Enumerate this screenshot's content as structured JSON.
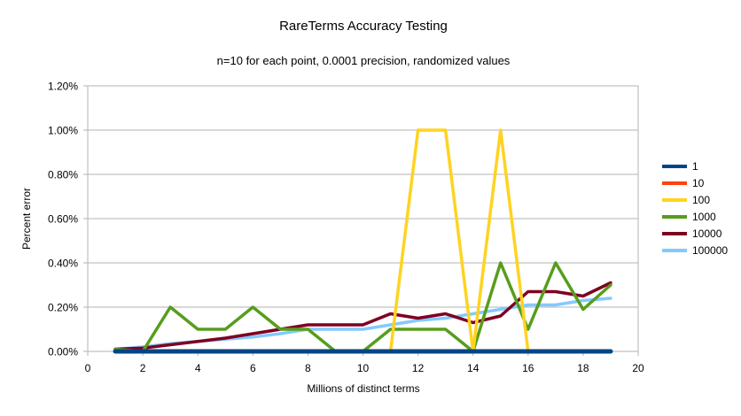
{
  "page": {
    "background": "#ffffff"
  },
  "chart_data": {
    "type": "line",
    "title": "RareTerms Accuracy Testing",
    "subtitle": "n=10 for each point, 0.0001 precision, randomized values",
    "xlabel": "Millions of distinct terms",
    "ylabel": "Percent error",
    "xlim": [
      0,
      20
    ],
    "ylim": [
      0,
      1.2
    ],
    "y_unit": "percent",
    "xticks": [
      0,
      2,
      4,
      6,
      8,
      10,
      12,
      14,
      16,
      18,
      20
    ],
    "yticks": [
      0,
      0.2,
      0.4,
      0.6,
      0.8,
      1.0,
      1.2
    ],
    "ytick_labels": [
      "0.00%",
      "0.20%",
      "0.40%",
      "0.60%",
      "0.80%",
      "1.00%",
      "1.20%"
    ],
    "grid": "horizontal",
    "grid_color": "#b3b3b3",
    "axis_color": "#b3b3b3",
    "text_color": "#000000",
    "legend_position": "right",
    "x": [
      1,
      2,
      3,
      4,
      5,
      6,
      7,
      8,
      9,
      10,
      11,
      12,
      13,
      14,
      15,
      16,
      17,
      18,
      19
    ],
    "series": [
      {
        "name": "1",
        "color": "#004586",
        "stroke_width": 5,
        "values": [
          0,
          0,
          0,
          0,
          0,
          0,
          0,
          0,
          0,
          0,
          0,
          0,
          0,
          0,
          0,
          0,
          0,
          0,
          0
        ]
      },
      {
        "name": "10",
        "color": "#ff420e",
        "stroke_width": 3.5,
        "values": [
          0,
          0,
          0,
          0,
          0,
          0,
          0,
          0,
          0,
          0,
          0,
          0,
          0,
          0,
          0,
          0,
          0,
          0,
          0
        ]
      },
      {
        "name": "100",
        "color": "#ffd320",
        "stroke_width": 3.5,
        "values": [
          0,
          0,
          0,
          0,
          0,
          0,
          0,
          0,
          0,
          0,
          0,
          1.0,
          1.0,
          0,
          1.0,
          0,
          0,
          0,
          0
        ]
      },
      {
        "name": "1000",
        "color": "#579d1c",
        "stroke_width": 3.5,
        "values": [
          0.01,
          0,
          0.2,
          0.1,
          0.1,
          0.2,
          0.1,
          0.1,
          0,
          0,
          0.1,
          0.1,
          0.1,
          0,
          0.4,
          0.1,
          0.4,
          0.19,
          0.3
        ]
      },
      {
        "name": "10000",
        "color": "#7e0021",
        "stroke_width": 3.5,
        "values": [
          0.01,
          0.015,
          0.03,
          0.045,
          0.06,
          0.08,
          0.1,
          0.12,
          0.12,
          0.12,
          0.17,
          0.15,
          0.17,
          0.13,
          0.16,
          0.27,
          0.27,
          0.25,
          0.31
        ]
      },
      {
        "name": "100000",
        "color": "#83caff",
        "stroke_width": 3.5,
        "values": [
          0.01,
          0.02,
          0.035,
          0.045,
          0.055,
          0.065,
          0.08,
          0.1,
          0.1,
          0.1,
          0.12,
          0.14,
          0.15,
          0.17,
          0.19,
          0.21,
          0.21,
          0.23,
          0.24
        ]
      }
    ],
    "draw_order": [
      "100000",
      "10000",
      "1000",
      "100",
      "10",
      "1"
    ]
  }
}
